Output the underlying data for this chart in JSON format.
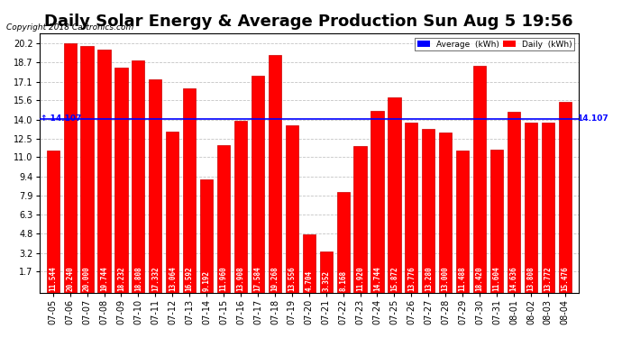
{
  "title": "Daily Solar Energy & Average Production Sun Aug 5 19:56",
  "copyright": "Copyright 2018 Cartronics.com",
  "average_value": 14.107,
  "categories": [
    "07-05",
    "07-06",
    "07-07",
    "07-08",
    "07-09",
    "07-10",
    "07-11",
    "07-12",
    "07-13",
    "07-14",
    "07-15",
    "07-16",
    "07-17",
    "07-18",
    "07-19",
    "07-20",
    "07-21",
    "07-22",
    "07-23",
    "07-24",
    "07-25",
    "07-26",
    "07-27",
    "07-28",
    "07-29",
    "07-30",
    "07-31",
    "08-01",
    "08-02",
    "08-03",
    "08-04"
  ],
  "values": [
    11.544,
    20.24,
    20.0,
    19.744,
    18.232,
    18.808,
    17.332,
    13.064,
    16.592,
    9.192,
    11.96,
    13.908,
    17.584,
    19.268,
    13.556,
    4.704,
    3.352,
    8.168,
    11.92,
    14.744,
    15.872,
    13.776,
    13.28,
    13.0,
    11.488,
    18.42,
    11.604,
    14.636,
    13.808,
    13.772,
    15.476
  ],
  "bar_color": "#FF0000",
  "bar_edge_color": "#CC0000",
  "background_color": "#FFFFFF",
  "plot_bg_color": "#FFFFFF",
  "grid_color": "#AAAAAA",
  "avg_line_color": "#0000FF",
  "avg_label_color": "#0000FF",
  "yticks": [
    1.7,
    3.2,
    4.8,
    6.3,
    7.9,
    9.4,
    11.0,
    12.5,
    14.0,
    15.6,
    17.1,
    18.7,
    20.2
  ],
  "ylim": [
    0,
    21.0
  ],
  "title_fontsize": 13,
  "legend_avg_color": "#0000FF",
  "legend_daily_color": "#FF0000",
  "value_fontsize": 5.5,
  "axis_label_fontsize": 7
}
